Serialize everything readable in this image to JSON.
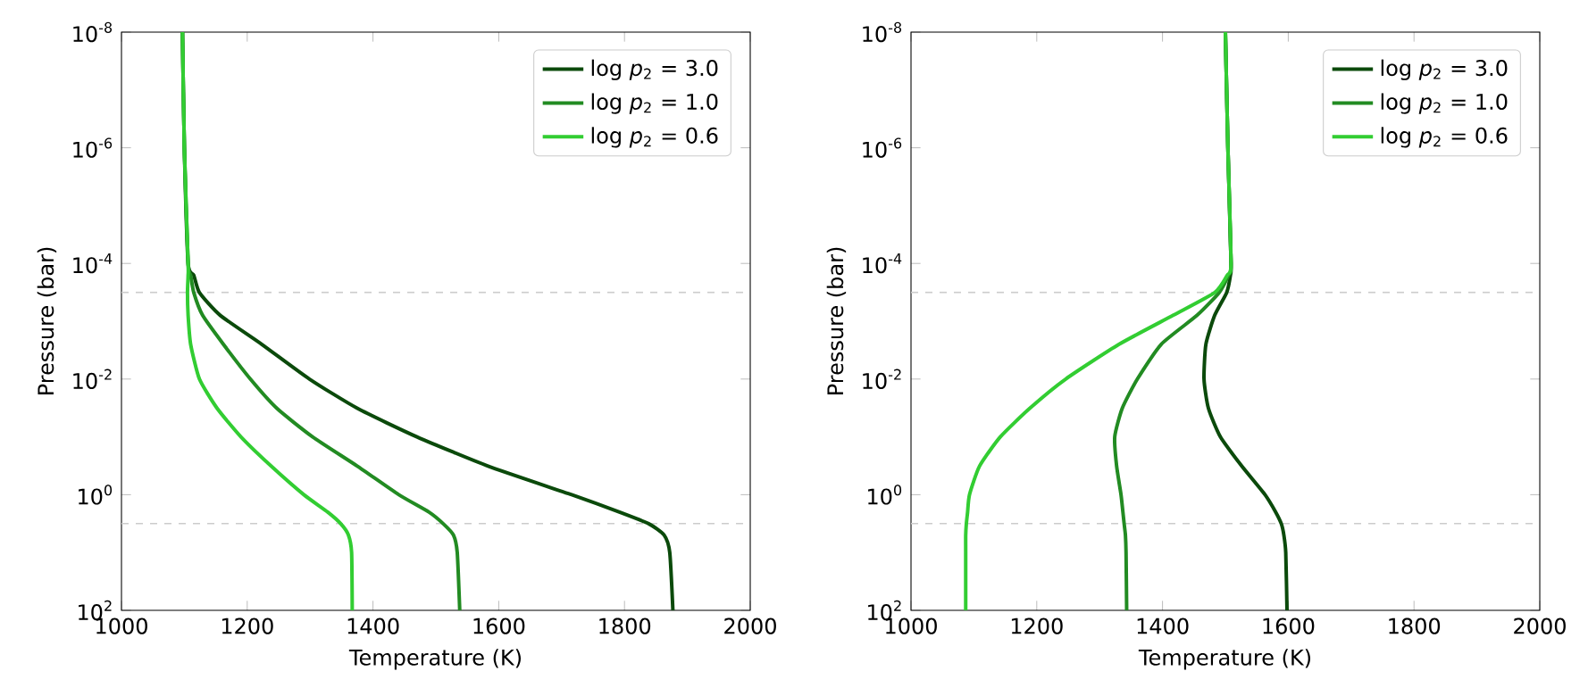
{
  "chart_data": [
    {
      "type": "line",
      "xlabel": "Temperature (K)",
      "ylabel": "Pressure (bar)",
      "log": "y",
      "legend": "top right",
      "xlim": [
        1000,
        2000
      ],
      "ylim": [
        100,
        1e-08
      ],
      "xticks": [
        1000,
        1200,
        1400,
        1600,
        1800,
        2000
      ],
      "yticks": [
        {
          "value": 100,
          "label": "10$^{2}$"
        },
        {
          "value": 1,
          "label": "10$^{0}$"
        },
        {
          "value": 0.01,
          "label": "10$^{-2}$"
        },
        {
          "value": 0.0001,
          "label": "10$^{-4}$"
        },
        {
          "value": 1e-06,
          "label": "10$^{-6}$"
        },
        {
          "value": 1e-08,
          "label": "10$^{-8}$"
        }
      ],
      "ref_lines": [
        {
          "axis": "y",
          "value": 0.000316,
          "color": "#cccccc",
          "line_style": "dashed"
        },
        {
          "axis": "y",
          "value": 3.16,
          "color": "#cccccc",
          "line_style": "dashed"
        }
      ],
      "series": [
        {
          "name": "log *p*$_{2}$ = 3.0",
          "color": "#0b4a0b",
          "x": [
            1097,
            1100,
            1106,
            1115,
            1124,
            1157,
            1223,
            1299,
            1375,
            1470,
            1583,
            1716,
            1792,
            1839,
            1863,
            1872,
            1877
          ],
          "values": [
            1e-08,
            1e-06,
            0.0001,
            0.00016,
            0.00032,
            0.00079,
            0.0025,
            0.01,
            0.032,
            0.1,
            0.32,
            1,
            2,
            3.2,
            5,
            10,
            100
          ]
        },
        {
          "name": "log *p*$_{2}$ = 1.0",
          "color": "#228b22",
          "x": [
            1097,
            1100,
            1106,
            1110,
            1115,
            1129,
            1162,
            1205,
            1247,
            1304,
            1375,
            1441,
            1489,
            1512,
            1528,
            1534,
            1538
          ],
          "values": [
            1e-08,
            1e-06,
            0.0001,
            0.00016,
            0.00032,
            0.00079,
            0.0025,
            0.01,
            0.032,
            0.1,
            0.32,
            1,
            2,
            3.2,
            5,
            10,
            100
          ]
        },
        {
          "name": "log *p*$_{2}$ = 0.6",
          "color": "#32cd32",
          "x": [
            1097,
            1100,
            1106,
            1106,
            1105,
            1106,
            1110,
            1124,
            1152,
            1190,
            1238,
            1290,
            1328,
            1349,
            1361,
            1366,
            1367
          ],
          "values": [
            1e-08,
            1e-06,
            0.0001,
            0.00016,
            0.00032,
            0.00079,
            0.0025,
            0.01,
            0.032,
            0.1,
            0.32,
            1,
            2,
            3.2,
            5,
            10,
            100
          ]
        }
      ]
    },
    {
      "type": "line",
      "xlabel": "Temperature (K)",
      "ylabel": "Pressure (bar)",
      "log": "y",
      "legend": "top right",
      "xlim": [
        1000,
        2000
      ],
      "ylim": [
        100,
        1e-08
      ],
      "xticks": [
        1000,
        1200,
        1400,
        1600,
        1800,
        2000
      ],
      "yticks": [
        {
          "value": 100,
          "label": "10$^{2}$"
        },
        {
          "value": 1,
          "label": "10$^{0}$"
        },
        {
          "value": 0.01,
          "label": "10$^{-2}$"
        },
        {
          "value": 0.0001,
          "label": "10$^{-4}$"
        },
        {
          "value": 1e-06,
          "label": "10$^{-6}$"
        },
        {
          "value": 1e-08,
          "label": "10$^{-8}$"
        }
      ],
      "ref_lines": [
        {
          "axis": "y",
          "value": 0.000316,
          "color": "#cccccc",
          "line_style": "dashed"
        },
        {
          "axis": "y",
          "value": 3.16,
          "color": "#cccccc",
          "line_style": "dashed"
        }
      ],
      "series": [
        {
          "name": "log *p*$_{2}$ = 3.0",
          "color": "#0b4a0b",
          "x": [
            1500,
            1504,
            1509,
            1508,
            1502,
            1483,
            1469,
            1466,
            1473,
            1492,
            1526,
            1563,
            1580,
            1589,
            1593,
            1596,
            1598
          ],
          "values": [
            1e-08,
            1e-06,
            0.0001,
            0.00016,
            0.00032,
            0.00079,
            0.0025,
            0.01,
            0.032,
            0.1,
            0.32,
            1,
            2,
            3.2,
            5,
            10,
            100
          ]
        },
        {
          "name": "log *p*$_{2}$ = 1.0",
          "color": "#228b22",
          "x": [
            1500,
            1504,
            1509,
            1505,
            1490,
            1455,
            1398,
            1360,
            1336,
            1324,
            1327,
            1334,
            1337,
            1339,
            1341,
            1342,
            1343
          ],
          "values": [
            1e-08,
            1e-06,
            0.0001,
            0.00016,
            0.00032,
            0.00079,
            0.0025,
            0.01,
            0.032,
            0.1,
            0.32,
            1,
            2,
            3.2,
            5,
            10,
            100
          ]
        },
        {
          "name": "log *p*$_{2}$ = 0.6",
          "color": "#32cd32",
          "x": [
            1500,
            1504,
            1509,
            1503,
            1483,
            1417,
            1331,
            1246,
            1189,
            1142,
            1109,
            1093,
            1090,
            1088,
            1087,
            1087,
            1087
          ],
          "values": [
            1e-08,
            1e-06,
            0.0001,
            0.00016,
            0.00032,
            0.00079,
            0.0025,
            0.01,
            0.032,
            0.1,
            0.32,
            1,
            2,
            3.2,
            5,
            10,
            100
          ]
        }
      ]
    }
  ]
}
